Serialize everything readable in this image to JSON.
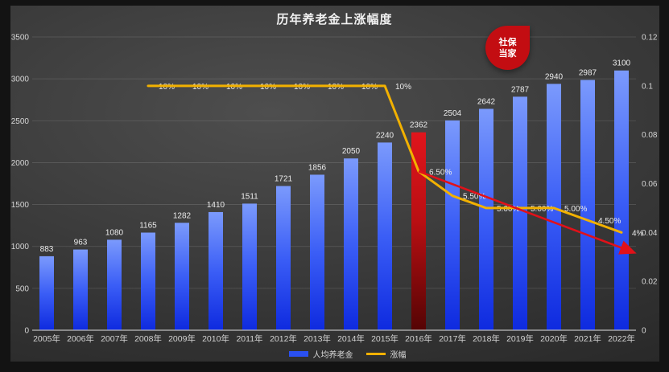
{
  "title": "历年养老金上涨幅度",
  "badge": {
    "line1": "社保",
    "line2": "当家",
    "color": "#c30d12"
  },
  "legend": [
    {
      "label": "人均养老金",
      "color": "#2a50f0"
    },
    {
      "label": "涨幅",
      "color": "#f2b100"
    }
  ],
  "chart_data": {
    "type": "combo-bar-line",
    "categories": [
      "2005年",
      "2006年",
      "2007年",
      "2008年",
      "2009年",
      "2010年",
      "2011年",
      "2012年",
      "2013年",
      "2014年",
      "2015年",
      "2016年",
      "2017年",
      "2018年",
      "2019年",
      "2020年",
      "2021年",
      "2022年"
    ],
    "bar_series": {
      "name": "人均养老金",
      "values": [
        883,
        963,
        1080,
        1165,
        1282,
        1410,
        1511,
        1721,
        1856,
        2050,
        2240,
        2362,
        2504,
        2642,
        2787,
        2940,
        2987,
        3100
      ],
      "highlight_index": 11,
      "color_top": "#7b9afc",
      "color_mid": "#3b5ef6",
      "color_bottom": "#0e2adf",
      "highlight_color_top": "#e0151c",
      "highlight_color_mid": "#b90f13",
      "highlight_color_bottom": "#550404"
    },
    "line_series": {
      "name": "涨幅",
      "values": [
        null,
        null,
        null,
        0.1,
        0.1,
        0.1,
        0.1,
        0.1,
        0.1,
        0.1,
        0.1,
        0.065,
        0.055,
        0.05,
        0.05,
        0.05,
        0.045,
        0.04
      ],
      "point_labels": [
        null,
        null,
        null,
        "10%",
        "10%",
        "10%",
        "10%",
        "10%",
        "10%",
        "10%",
        "10%",
        "6.50%",
        "5.50%",
        "5.00%",
        "5.00%",
        "5.00%",
        "4.50%",
        "4%"
      ],
      "color": "#f2b100"
    },
    "trend_arrow": {
      "start_index": 11,
      "start_value": 0.065,
      "end_index": 17.33,
      "end_value": 0.032,
      "color": "#e11119"
    },
    "left_axis": {
      "min": 0,
      "max": 3500,
      "tick_values": [
        0,
        500,
        1000,
        1500,
        2000,
        2500,
        3000,
        3500
      ],
      "tick_labels": [
        "0",
        "500",
        "1000",
        "1500",
        "2000",
        "2500",
        "3000",
        "3500"
      ]
    },
    "right_axis": {
      "min": 0,
      "max": 0.12,
      "tick_values": [
        0,
        0.02,
        0.04,
        0.06,
        0.08,
        0.1,
        0.12
      ],
      "tick_labels": [
        "0",
        "0.02",
        "0.04",
        "0.06",
        "0.08",
        "0.1",
        "0.12"
      ]
    },
    "grid": "horizontal lines at left-axis intervals",
    "legend_position": "bottom-center"
  }
}
